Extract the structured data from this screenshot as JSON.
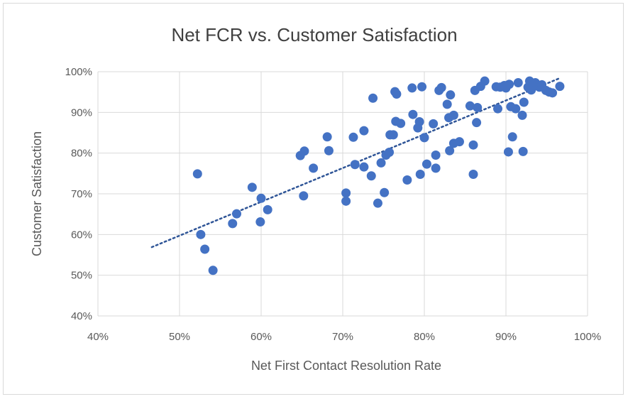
{
  "chart_data": {
    "type": "scatter",
    "title": "Net FCR vs. Customer Satisfaction",
    "xlabel": "Net First Contact Resolution Rate",
    "ylabel": "Customer Satisfaction",
    "xlim": [
      0.4,
      1.0
    ],
    "ylim": [
      0.4,
      1.0
    ],
    "xticks": [
      0.4,
      0.5,
      0.6,
      0.7,
      0.8,
      0.9,
      1.0
    ],
    "yticks": [
      0.4,
      0.5,
      0.6,
      0.7,
      0.8,
      0.9,
      1.0
    ],
    "xtick_labels": [
      "40%",
      "50%",
      "60%",
      "70%",
      "80%",
      "90%",
      "100%"
    ],
    "ytick_labels": [
      "40%",
      "50%",
      "60%",
      "70%",
      "80%",
      "90%",
      "100%"
    ],
    "grid": true,
    "legend": "none",
    "marker_color": "#4472c4",
    "trendline": {
      "type": "linear",
      "style": "dotted",
      "color": "#2f5597",
      "x": [
        0.466,
        0.967
      ],
      "y": [
        0.569,
        0.985
      ]
    },
    "points": [
      {
        "x": 0.522,
        "y": 0.749
      },
      {
        "x": 0.526,
        "y": 0.6
      },
      {
        "x": 0.531,
        "y": 0.564
      },
      {
        "x": 0.541,
        "y": 0.512
      },
      {
        "x": 0.565,
        "y": 0.627
      },
      {
        "x": 0.57,
        "y": 0.651
      },
      {
        "x": 0.589,
        "y": 0.716
      },
      {
        "x": 0.599,
        "y": 0.631
      },
      {
        "x": 0.6,
        "y": 0.689
      },
      {
        "x": 0.608,
        "y": 0.661
      },
      {
        "x": 0.648,
        "y": 0.794
      },
      {
        "x": 0.653,
        "y": 0.805
      },
      {
        "x": 0.652,
        "y": 0.695
      },
      {
        "x": 0.664,
        "y": 0.763
      },
      {
        "x": 0.681,
        "y": 0.84
      },
      {
        "x": 0.683,
        "y": 0.806
      },
      {
        "x": 0.704,
        "y": 0.702
      },
      {
        "x": 0.704,
        "y": 0.682
      },
      {
        "x": 0.713,
        "y": 0.839
      },
      {
        "x": 0.715,
        "y": 0.772
      },
      {
        "x": 0.726,
        "y": 0.855
      },
      {
        "x": 0.726,
        "y": 0.766
      },
      {
        "x": 0.735,
        "y": 0.744
      },
      {
        "x": 0.737,
        "y": 0.935
      },
      {
        "x": 0.743,
        "y": 0.677
      },
      {
        "x": 0.747,
        "y": 0.776
      },
      {
        "x": 0.751,
        "y": 0.703
      },
      {
        "x": 0.753,
        "y": 0.795
      },
      {
        "x": 0.757,
        "y": 0.802
      },
      {
        "x": 0.758,
        "y": 0.845
      },
      {
        "x": 0.762,
        "y": 0.845
      },
      {
        "x": 0.764,
        "y": 0.951
      },
      {
        "x": 0.765,
        "y": 0.878
      },
      {
        "x": 0.766,
        "y": 0.945
      },
      {
        "x": 0.771,
        "y": 0.873
      },
      {
        "x": 0.779,
        "y": 0.734
      },
      {
        "x": 0.785,
        "y": 0.96
      },
      {
        "x": 0.786,
        "y": 0.895
      },
      {
        "x": 0.792,
        "y": 0.862
      },
      {
        "x": 0.794,
        "y": 0.877
      },
      {
        "x": 0.795,
        "y": 0.748
      },
      {
        "x": 0.797,
        "y": 0.963
      },
      {
        "x": 0.8,
        "y": 0.838
      },
      {
        "x": 0.803,
        "y": 0.773
      },
      {
        "x": 0.811,
        "y": 0.872
      },
      {
        "x": 0.814,
        "y": 0.763
      },
      {
        "x": 0.814,
        "y": 0.795
      },
      {
        "x": 0.818,
        "y": 0.954
      },
      {
        "x": 0.821,
        "y": 0.961
      },
      {
        "x": 0.828,
        "y": 0.92
      },
      {
        "x": 0.83,
        "y": 0.887
      },
      {
        "x": 0.831,
        "y": 0.806
      },
      {
        "x": 0.832,
        "y": 0.943
      },
      {
        "x": 0.836,
        "y": 0.893
      },
      {
        "x": 0.836,
        "y": 0.824
      },
      {
        "x": 0.843,
        "y": 0.828
      },
      {
        "x": 0.856,
        "y": 0.916
      },
      {
        "x": 0.86,
        "y": 0.82
      },
      {
        "x": 0.86,
        "y": 0.748
      },
      {
        "x": 0.862,
        "y": 0.954
      },
      {
        "x": 0.864,
        "y": 0.875
      },
      {
        "x": 0.865,
        "y": 0.912
      },
      {
        "x": 0.869,
        "y": 0.964
      },
      {
        "x": 0.874,
        "y": 0.977
      },
      {
        "x": 0.888,
        "y": 0.963
      },
      {
        "x": 0.89,
        "y": 0.909
      },
      {
        "x": 0.893,
        "y": 0.962
      },
      {
        "x": 0.898,
        "y": 0.966
      },
      {
        "x": 0.9,
        "y": 0.96
      },
      {
        "x": 0.903,
        "y": 0.803
      },
      {
        "x": 0.904,
        "y": 0.969
      },
      {
        "x": 0.906,
        "y": 0.914
      },
      {
        "x": 0.908,
        "y": 0.84
      },
      {
        "x": 0.912,
        "y": 0.909
      },
      {
        "x": 0.915,
        "y": 0.973
      },
      {
        "x": 0.92,
        "y": 0.893
      },
      {
        "x": 0.921,
        "y": 0.804
      },
      {
        "x": 0.922,
        "y": 0.925
      },
      {
        "x": 0.927,
        "y": 0.962
      },
      {
        "x": 0.929,
        "y": 0.977
      },
      {
        "x": 0.931,
        "y": 0.955
      },
      {
        "x": 0.934,
        "y": 0.968
      },
      {
        "x": 0.936,
        "y": 0.973
      },
      {
        "x": 0.941,
        "y": 0.962
      },
      {
        "x": 0.944,
        "y": 0.968
      },
      {
        "x": 0.949,
        "y": 0.954
      },
      {
        "x": 0.953,
        "y": 0.95
      },
      {
        "x": 0.957,
        "y": 0.948
      },
      {
        "x": 0.966,
        "y": 0.964
      }
    ]
  }
}
